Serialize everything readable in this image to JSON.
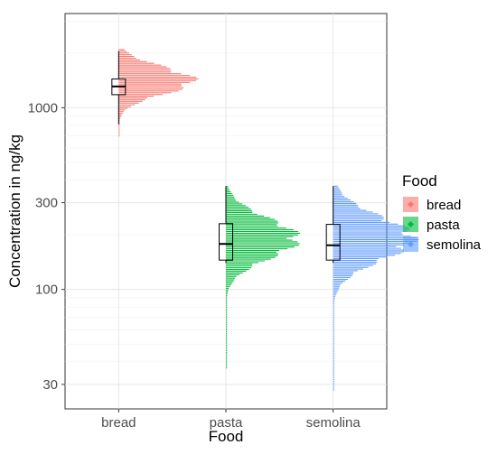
{
  "chart_data": {
    "type": "violin-boxplot",
    "xlabel": "Food",
    "ylabel": "Concentration in ng/kg",
    "y_scale": "log10",
    "ylim": [
      22,
      3300
    ],
    "y_ticks": [
      30,
      100,
      300,
      1000
    ],
    "y_tick_labels": [
      "30",
      "100",
      "300",
      "1000"
    ],
    "categories": [
      "bread",
      "pasta",
      "semolina"
    ],
    "grid": true,
    "legend": {
      "title": "Food",
      "position": "right",
      "entries": [
        "bread",
        "pasta",
        "semolina"
      ]
    },
    "series": [
      {
        "name": "bread",
        "color": "#F8766D",
        "box": {
          "min": 810,
          "q1": 1180,
          "median": 1310,
          "q3": 1440,
          "max": 2050
        },
        "data_range": [
          700,
          2100
        ],
        "density": {
          "log_center": 3.15,
          "log_sd": 0.075,
          "peak_width_frac": 0.75
        }
      },
      {
        "name": "pasta",
        "color": "#00BA38",
        "box": {
          "min": 140,
          "q1": 145,
          "median": 178,
          "q3": 230,
          "max": 370
        },
        "data_range": [
          37,
          370
        ],
        "density": {
          "log_center": 2.28,
          "log_sd": 0.11,
          "peak_width_frac": 0.72
        }
      },
      {
        "name": "semolina",
        "color": "#619CFF",
        "box": {
          "min": 140,
          "q1": 145,
          "median": 175,
          "q3": 228,
          "max": 370
        },
        "data_range": [
          28,
          370
        ],
        "density": {
          "log_center": 2.28,
          "log_sd": 0.12,
          "peak_width_frac": 0.8
        }
      }
    ]
  }
}
